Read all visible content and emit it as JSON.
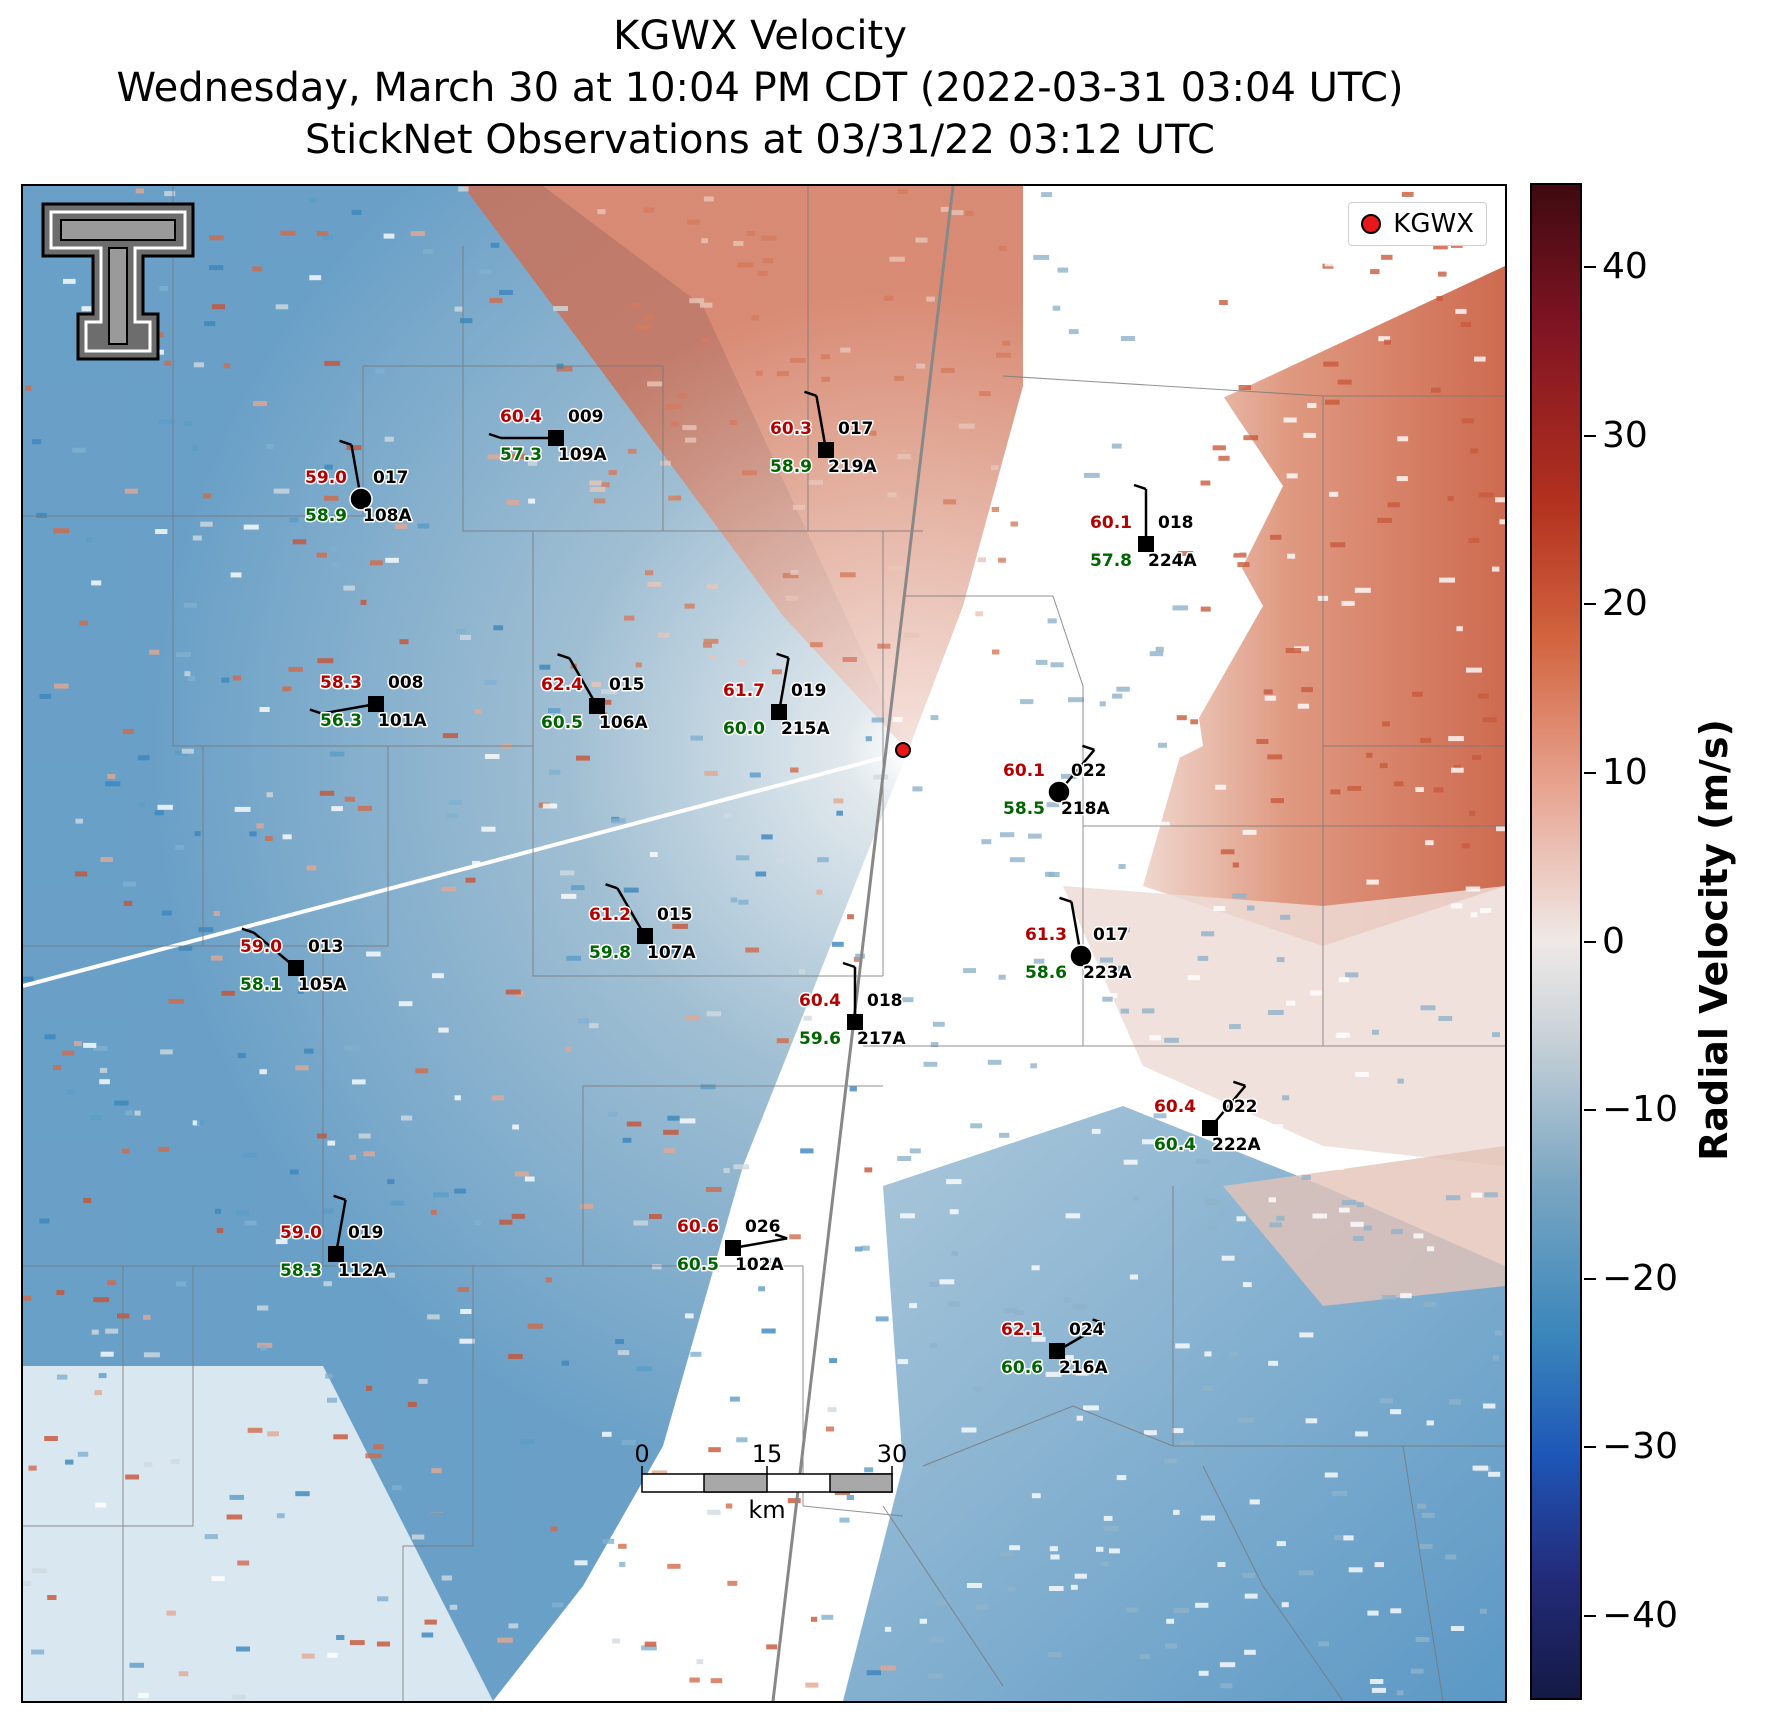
{
  "title": {
    "line1": "KGWX Velocity",
    "line2": "Wednesday, March 30 at 10:04 PM CDT (2022-03-31 03:04 UTC)",
    "line3": "StickNet Observations at 03/31/22 03:12 UTC"
  },
  "legend": {
    "label": "KGWX",
    "color": "#e81818"
  },
  "colorbar": {
    "label": "Radial Velocity (m/s)",
    "min": -45,
    "max": 45,
    "ticks": [
      "40",
      "30",
      "20",
      "10",
      "0",
      "−10",
      "−20",
      "−30",
      "−40"
    ],
    "tick_values": [
      40,
      30,
      20,
      10,
      0,
      -10,
      -20,
      -30,
      -40
    ]
  },
  "scalebar": {
    "labels": [
      "0",
      "15",
      "30"
    ],
    "unit": "km"
  },
  "logo": "texas-tech-double-t-logo",
  "stations": [
    {
      "id": "108A",
      "temp": "59.0",
      "dew": "58.9",
      "dir": "017",
      "marker": "circle"
    },
    {
      "id": "109A",
      "temp": "60.4",
      "dew": "57.3",
      "dir": "009",
      "marker": "square"
    },
    {
      "id": "219A",
      "temp": "60.3",
      "dew": "58.9",
      "dir": "017",
      "marker": "square"
    },
    {
      "id": "224A",
      "temp": "60.1",
      "dew": "57.8",
      "dir": "018",
      "marker": "square"
    },
    {
      "id": "101A",
      "temp": "58.3",
      "dew": "56.3",
      "dir": "008",
      "marker": "square"
    },
    {
      "id": "106A",
      "temp": "62.4",
      "dew": "60.5",
      "dir": "015",
      "marker": "square"
    },
    {
      "id": "215A",
      "temp": "61.7",
      "dew": "60.0",
      "dir": "019",
      "marker": "square"
    },
    {
      "id": "218A",
      "temp": "60.1",
      "dew": "58.5",
      "dir": "022",
      "marker": "circle"
    },
    {
      "id": "107A",
      "temp": "61.2",
      "dew": "59.8",
      "dir": "015",
      "marker": "square"
    },
    {
      "id": "105A",
      "temp": "59.0",
      "dew": "58.1",
      "dir": "013",
      "marker": "square"
    },
    {
      "id": "223A",
      "temp": "61.3",
      "dew": "58.6",
      "dir": "017",
      "marker": "circle"
    },
    {
      "id": "217A",
      "temp": "60.4",
      "dew": "59.6",
      "dir": "018",
      "marker": "square"
    },
    {
      "id": "222A",
      "temp": "60.4",
      "dew": "60.4",
      "dir": "022",
      "marker": "square"
    },
    {
      "id": "102A",
      "temp": "60.6",
      "dew": "60.5",
      "dir": "026",
      "marker": "square"
    },
    {
      "id": "112A",
      "temp": "59.0",
      "dew": "58.3",
      "dir": "019",
      "marker": "square"
    },
    {
      "id": "216A",
      "temp": "62.1",
      "dew": "60.6",
      "dir": "024",
      "marker": "square"
    }
  ]
}
